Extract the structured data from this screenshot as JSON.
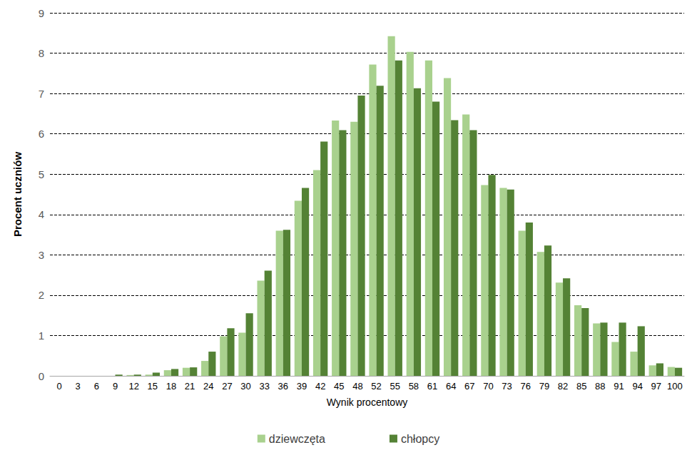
{
  "chart_data": {
    "type": "bar",
    "xlabel": "Wynik procentowy",
    "ylabel": "Procent uczniów",
    "categories": [
      "0",
      "3",
      "6",
      "9",
      "12",
      "15",
      "18",
      "21",
      "24",
      "27",
      "30",
      "33",
      "36",
      "39",
      "42",
      "45",
      "48",
      "52",
      "55",
      "58",
      "61",
      "64",
      "67",
      "70",
      "73",
      "76",
      "79",
      "82",
      "85",
      "88",
      "91",
      "94",
      "97",
      "100"
    ],
    "series": [
      {
        "name": "dziewczęta",
        "color": "#a9d18e",
        "values": [
          0,
          0,
          0,
          0,
          0.02,
          0.03,
          0.14,
          0.2,
          0.37,
          0.98,
          1.07,
          2.36,
          3.6,
          4.34,
          5.1,
          6.33,
          6.3,
          7.72,
          8.42,
          8.03,
          7.82,
          7.38,
          6.48,
          4.73,
          4.66,
          3.6,
          3.07,
          2.31,
          1.75,
          1.3,
          0.84,
          0.6,
          0.26,
          0.22
        ]
      },
      {
        "name": "chłopcy",
        "color": "#548235",
        "values": [
          0,
          0,
          0,
          0.03,
          0.03,
          0.08,
          0.17,
          0.21,
          0.6,
          1.18,
          1.55,
          2.61,
          3.62,
          4.66,
          5.81,
          6.09,
          6.95,
          7.19,
          7.82,
          7.13,
          6.8,
          6.34,
          6.09,
          4.98,
          4.62,
          3.8,
          3.23,
          2.42,
          1.68,
          1.32,
          1.32,
          1.23,
          0.31,
          0.2
        ]
      }
    ],
    "ylim": [
      0,
      9
    ],
    "yticks": [
      0,
      1,
      2,
      3,
      4,
      5,
      6,
      7,
      8,
      9
    ],
    "grid": true,
    "legend": "bottom"
  }
}
